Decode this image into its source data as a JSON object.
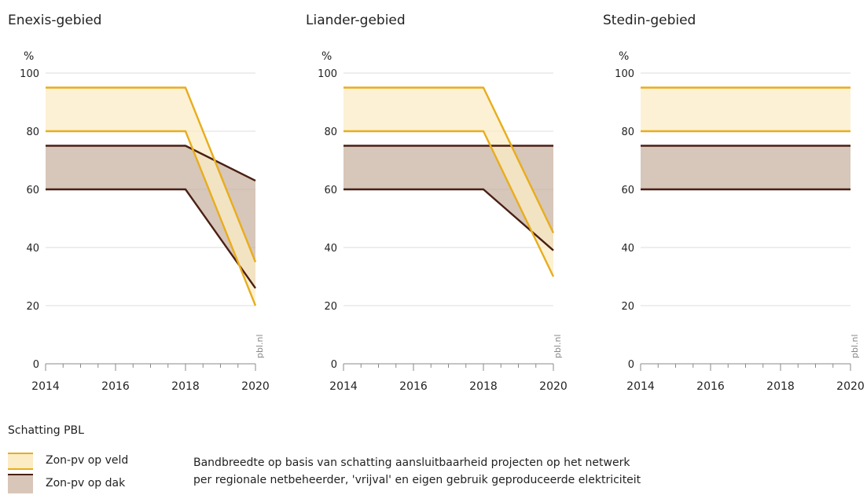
{
  "source_label": "pbl.nl",
  "colors": {
    "veld_line": "#e8ad1c",
    "veld_fill": "#fbecc6",
    "dak_line": "#4a1f14",
    "dak_fill": "#c9b3a3",
    "grid": "#dcdcdc",
    "axis": "#888888"
  },
  "chart_data": [
    {
      "type": "area",
      "title": "Enexis-gebied",
      "ylabel": "%",
      "x": [
        2014,
        2016,
        2018,
        2020
      ],
      "xticks": [
        "2014",
        "2016",
        "2018",
        "2020"
      ],
      "ylim": [
        0,
        100
      ],
      "yticks": [
        "0",
        "20",
        "40",
        "60",
        "80",
        "100"
      ],
      "series": [
        {
          "name": "Zon-pv op veld",
          "x": [
            2014,
            2018,
            2020
          ],
          "upper": [
            95,
            95,
            35
          ],
          "lower": [
            80,
            80,
            20
          ]
        },
        {
          "name": "Zon-pv op dak",
          "x": [
            2014,
            2018,
            2020
          ],
          "upper": [
            75,
            75,
            63
          ],
          "lower": [
            60,
            60,
            26
          ]
        }
      ]
    },
    {
      "type": "area",
      "title": "Liander-gebied",
      "ylabel": "%",
      "x": [
        2014,
        2016,
        2018,
        2020
      ],
      "xticks": [
        "2014",
        "2016",
        "2018",
        "2020"
      ],
      "ylim": [
        0,
        100
      ],
      "yticks": [
        "0",
        "20",
        "40",
        "60",
        "80",
        "100"
      ],
      "series": [
        {
          "name": "Zon-pv op veld",
          "x": [
            2014,
            2018,
            2020
          ],
          "upper": [
            95,
            95,
            45
          ],
          "lower": [
            80,
            80,
            30
          ]
        },
        {
          "name": "Zon-pv op dak",
          "x": [
            2014,
            2018,
            2020
          ],
          "upper": [
            75,
            75,
            75
          ],
          "lower": [
            60,
            60,
            39
          ]
        }
      ]
    },
    {
      "type": "area",
      "title": "Stedin-gebied",
      "ylabel": "%",
      "x": [
        2014,
        2016,
        2018,
        2020
      ],
      "xticks": [
        "2014",
        "2016",
        "2018",
        "2020"
      ],
      "ylim": [
        0,
        100
      ],
      "yticks": [
        "0",
        "20",
        "40",
        "60",
        "80",
        "100"
      ],
      "series": [
        {
          "name": "Zon-pv op veld",
          "x": [
            2014,
            2018,
            2020
          ],
          "upper": [
            95,
            95,
            95
          ],
          "lower": [
            80,
            80,
            80
          ]
        },
        {
          "name": "Zon-pv op dak",
          "x": [
            2014,
            2018,
            2020
          ],
          "upper": [
            75,
            75,
            75
          ],
          "lower": [
            60,
            60,
            60
          ]
        }
      ]
    }
  ],
  "legend": {
    "title": "Schatting PBL",
    "items": [
      {
        "label": "Zon-pv op veld"
      },
      {
        "label": "Zon-pv op dak"
      }
    ],
    "note_line1": "Bandbreedte op basis van schatting aansluitbaarheid projecten op het netwerk",
    "note_line2": "per regionale netbeheerder, 'vrijval' en eigen gebruik geproduceerde elektriciteit"
  }
}
